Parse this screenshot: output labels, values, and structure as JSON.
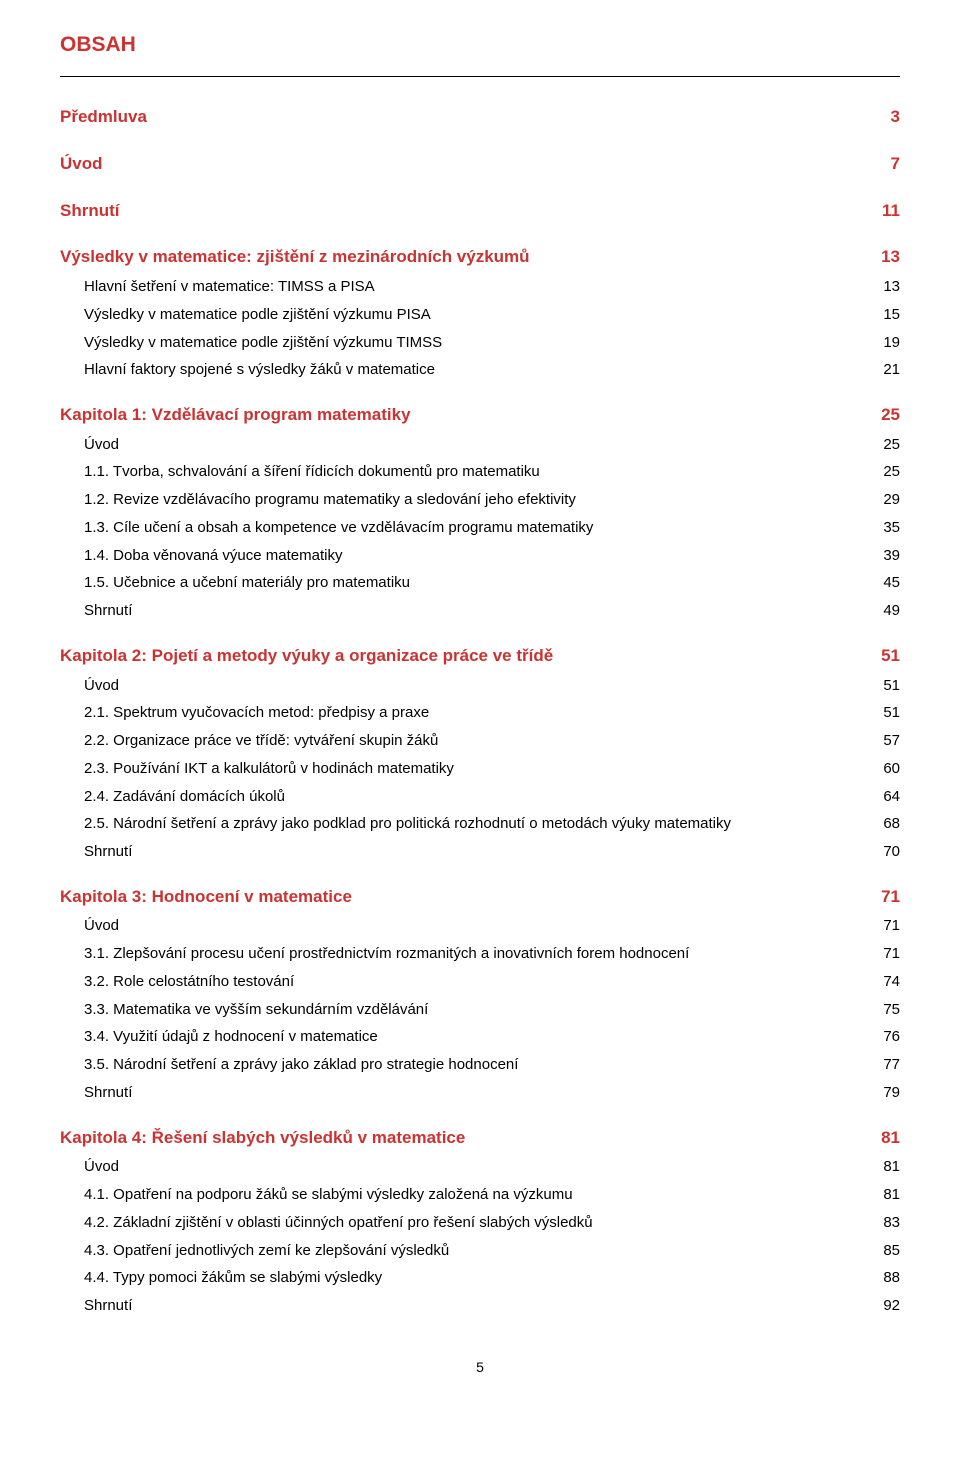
{
  "doc": {
    "title": "OBSAH",
    "page_number": "5",
    "accent_color": "#cb3333",
    "text_color": "#000000",
    "background_color": "#ffffff",
    "font_family": "Arial",
    "title_fontsize": 21,
    "heading_fontsize": 17,
    "body_fontsize": 15
  },
  "top": {
    "predmluva": {
      "label": "Předmluva",
      "page": "3"
    },
    "uvod": {
      "label": "Úvod",
      "page": "7"
    },
    "shrnuti": {
      "label": "Shrnutí",
      "page": "11"
    },
    "vysledky": {
      "label": "Výsledky v matematice: zjištění z mezinárodních výzkumů",
      "page": "13",
      "items": [
        {
          "label": "Hlavní šetření v matematice: TIMSS a PISA",
          "page": "13"
        },
        {
          "label": "Výsledky v matematice podle zjištění výzkumu PISA",
          "page": "15"
        },
        {
          "label": "Výsledky v matematice podle zjištění výzkumu TIMSS",
          "page": "19"
        },
        {
          "label": "Hlavní faktory spojené s výsledky žáků v matematice",
          "page": "21"
        }
      ]
    }
  },
  "ch1": {
    "heading": {
      "label": "Kapitola 1: Vzdělávací program matematiky",
      "page": "25"
    },
    "items": [
      {
        "label": "Úvod",
        "page": "25"
      },
      {
        "label": "1.1.  Tvorba, schvalování a šíření řídicích dokumentů pro matematiku",
        "page": "25"
      },
      {
        "label": "1.2.  Revize vzdělávacího programu matematiky a sledování jeho efektivity",
        "page": "29"
      },
      {
        "label": "1.3.  Cíle učení a obsah a kompetence ve vzdělávacím programu matematiky",
        "page": "35"
      },
      {
        "label": "1.4.  Doba věnovaná výuce matematiky",
        "page": "39"
      },
      {
        "label": "1.5.  Učebnice a učební materiály pro matematiku",
        "page": "45"
      },
      {
        "label": "Shrnutí",
        "page": "49"
      }
    ]
  },
  "ch2": {
    "heading": {
      "label": "Kapitola 2: Pojetí a metody výuky a organizace práce ve třídě",
      "page": "51"
    },
    "items": [
      {
        "label": "Úvod",
        "page": "51"
      },
      {
        "label": "2.1.  Spektrum vyučovacích metod: předpisy a praxe",
        "page": "51"
      },
      {
        "label": "2.2.  Organizace práce ve třídě: vytváření skupin žáků",
        "page": "57"
      },
      {
        "label": "2.3.  Používání IKT a kalkulátorů v hodinách matematiky",
        "page": "60"
      },
      {
        "label": "2.4.  Zadávání domácích úkolů",
        "page": "64"
      },
      {
        "label": "2.5.  Národní šetření a zprávy jako podklad pro politická rozhodnutí o metodách výuky matematiky",
        "page": "68"
      },
      {
        "label": "Shrnutí",
        "page": "70"
      }
    ]
  },
  "ch3": {
    "heading": {
      "label": "Kapitola 3: Hodnocení v matematice",
      "page": "71"
    },
    "items": [
      {
        "label": "Úvod",
        "page": "71"
      },
      {
        "label": "3.1.  Zlepšování procesu učení prostřednictvím rozmanitých a inovativních forem hodnocení",
        "page": "71"
      },
      {
        "label": "3.2.  Role celostátního testování",
        "page": "74"
      },
      {
        "label": "3.3.  Matematika ve vyšším sekundárním vzdělávání",
        "page": "75"
      },
      {
        "label": "3.4.  Využití údajů z hodnocení v matematice",
        "page": "76"
      },
      {
        "label": "3.5.  Národní šetření a zprávy jako základ pro strategie hodnocení",
        "page": "77"
      },
      {
        "label": "Shrnutí",
        "page": "79"
      }
    ]
  },
  "ch4": {
    "heading": {
      "label": "Kapitola 4: Řešení slabých výsledků v matematice",
      "page": "81"
    },
    "items": [
      {
        "label": "Úvod",
        "page": "81"
      },
      {
        "label": "4.1.  Opatření na podporu žáků se slabými výsledky založená na výzkumu",
        "page": "81"
      },
      {
        "label": "4.2.  Základní zjištění v oblasti účinných opatření pro řešení slabých výsledků",
        "page": "83"
      },
      {
        "label": "4.3.  Opatření jednotlivých zemí ke zlepšování výsledků",
        "page": "85"
      },
      {
        "label": "4.4.  Typy pomoci žákům se slabými výsledky",
        "page": "88"
      },
      {
        "label": "Shrnutí",
        "page": "92"
      }
    ]
  }
}
